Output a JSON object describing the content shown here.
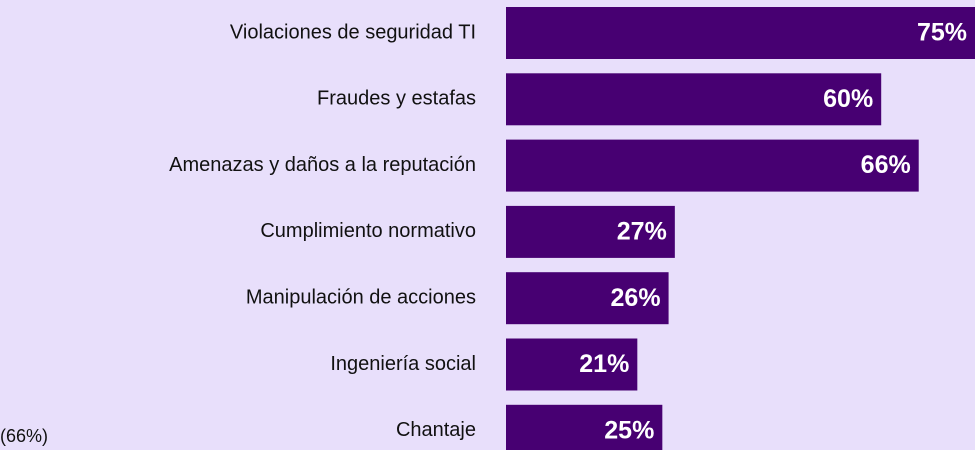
{
  "chart_data": {
    "type": "bar",
    "orientation": "horizontal",
    "categories": [
      "Violaciones de seguridad TI",
      "Fraudes y estafas",
      "Amenazas y daños a la reputación",
      "Cumplimiento normativo",
      "Manipulación de acciones",
      "Ingeniería social",
      "Chantaje"
    ],
    "values": [
      75,
      60,
      66,
      27,
      26,
      21,
      25
    ],
    "value_labels": [
      "75%",
      "60%",
      "66%",
      "27%",
      "26%",
      "21%",
      "25%"
    ],
    "color": "#470072",
    "annotation": "(66%)"
  }
}
